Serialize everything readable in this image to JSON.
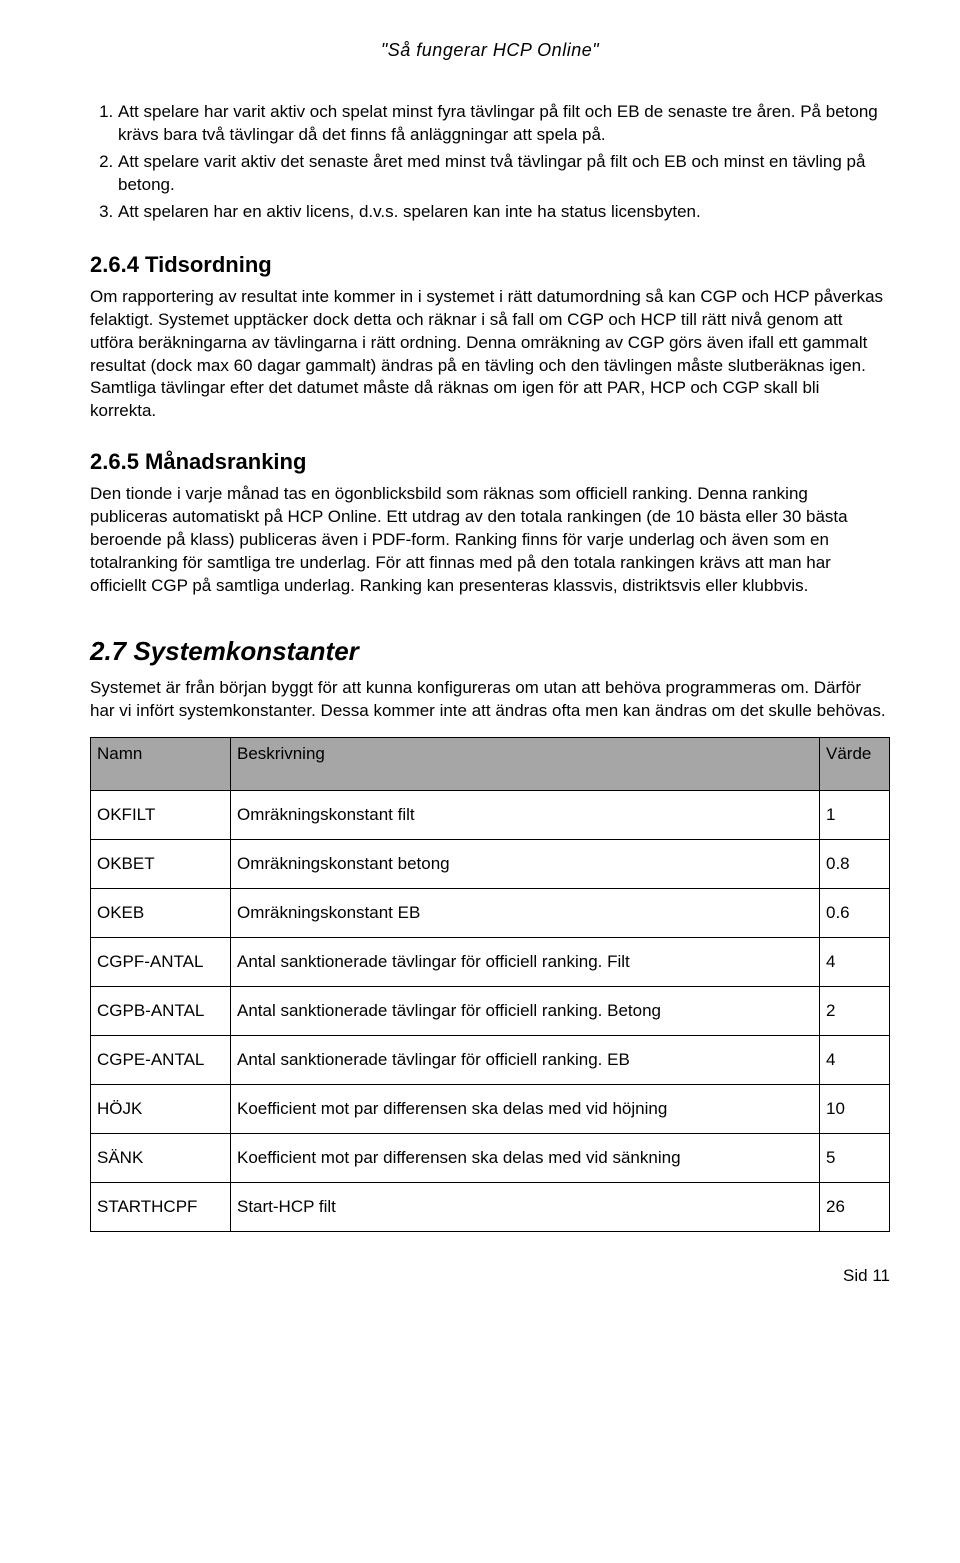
{
  "header": {
    "title": "\"Så fungerar HCP Online\""
  },
  "list": {
    "items": [
      "Att spelare har varit aktiv och spelat minst fyra tävlingar på filt och EB de senaste tre åren. På betong krävs bara två tävlingar då det finns få anläggningar att spela på.",
      "Att spelare varit aktiv det senaste året med minst två tävlingar på filt och EB och minst en tävling på betong.",
      "Att spelaren har en aktiv licens, d.v.s. spelaren kan inte ha status licensbyten."
    ]
  },
  "sections": {
    "s264": {
      "heading": "2.6.4 Tidsordning",
      "body": "Om rapportering av resultat inte kommer in i systemet i rätt datumordning så kan CGP och HCP påverkas felaktigt. Systemet upptäcker dock detta och räknar i så fall om CGP och HCP till rätt nivå genom att utföra beräkningarna av tävlingarna i rätt ordning. Denna omräkning av CGP görs även ifall ett gammalt resultat (dock max 60 dagar gammalt) ändras på en tävling och den tävlingen måste slutberäknas igen. Samtliga tävlingar efter det datumet måste då räknas om igen för att PAR, HCP och CGP skall bli korrekta."
    },
    "s265": {
      "heading": "2.6.5 Månadsranking",
      "body": "Den tionde i varje månad tas en ögonblicksbild som räknas som officiell ranking. Denna ranking publiceras automatiskt på HCP Online. Ett utdrag av den totala rankingen (de 10 bästa eller 30 bästa beroende på klass) publiceras även i PDF-form. Ranking finns för varje underlag och även som en totalranking för samtliga tre underlag. För att finnas med på den totala rankingen krävs att man har officiellt CGP på samtliga underlag. Ranking kan presenteras klassvis, distriktsvis eller klubbvis."
    },
    "s27": {
      "heading": "2.7 Systemkonstanter",
      "body": "Systemet är från början byggt för att kunna konfigureras om utan att behöva programmeras om. Därför har vi infört systemkonstanter. Dessa kommer inte att ändras ofta men kan ändras om det skulle behövas."
    }
  },
  "table": {
    "headers": {
      "name": "Namn",
      "desc": "Beskrivning",
      "value": "Värde"
    },
    "header_bg": "#a6a6a6",
    "border_color": "#000000",
    "rows": [
      {
        "name": "OKFILT",
        "desc": "Omräkningskonstant filt",
        "value": "1"
      },
      {
        "name": "OKBET",
        "desc": "Omräkningskonstant betong",
        "value": "0.8"
      },
      {
        "name": "OKEB",
        "desc": "Omräkningskonstant EB",
        "value": "0.6"
      },
      {
        "name": "CGPF-ANTAL",
        "desc": "Antal sanktionerade tävlingar för officiell ranking. Filt",
        "value": "4"
      },
      {
        "name": "CGPB-ANTAL",
        "desc": "Antal sanktionerade tävlingar för officiell ranking. Betong",
        "value": "2"
      },
      {
        "name": "CGPE-ANTAL",
        "desc": "Antal sanktionerade tävlingar för officiell ranking. EB",
        "value": "4"
      },
      {
        "name": "HÖJK",
        "desc": "Koefficient mot par differensen ska delas med vid höjning",
        "value": "10"
      },
      {
        "name": "SÄNK",
        "desc": "Koefficient mot par differensen ska delas med vid sänkning",
        "value": "5"
      },
      {
        "name": "STARTHCPF",
        "desc": "Start-HCP filt",
        "value": "26"
      }
    ]
  },
  "footer": {
    "page_label": "Sid 11"
  }
}
